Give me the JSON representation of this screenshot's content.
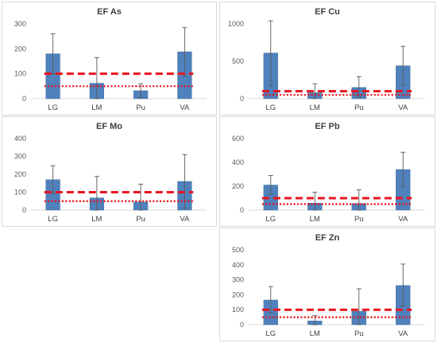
{
  "chart_data": [
    {
      "type": "bar",
      "title": "EF As",
      "categories": [
        "LG",
        "LM",
        "Pu",
        "VA"
      ],
      "values": [
        180,
        62,
        32,
        188
      ],
      "error_high": [
        260,
        165,
        60,
        285
      ],
      "error_low": [
        100,
        0,
        5,
        90
      ],
      "ylim": [
        0,
        300
      ],
      "yticks": [
        "0",
        "100",
        "200",
        "300"
      ],
      "reference_lines": [
        {
          "style": "dashed",
          "value": 100
        },
        {
          "style": "dotted",
          "value": 50
        }
      ]
    },
    {
      "type": "bar",
      "title": "EF Cu",
      "categories": [
        "LG",
        "LM",
        "Pu",
        "VA"
      ],
      "values": [
        610,
        80,
        150,
        440
      ],
      "error_high": [
        1040,
        200,
        295,
        700
      ],
      "error_low": [
        170,
        0,
        20,
        180
      ],
      "ylim": [
        0,
        1000
      ],
      "yticks": [
        "0",
        "500",
        "1000"
      ],
      "reference_lines": [
        {
          "style": "dashed",
          "value": 100
        },
        {
          "style": "dotted",
          "value": 50
        }
      ]
    },
    {
      "type": "bar",
      "title": "EF Mo",
      "categories": [
        "LG",
        "LM",
        "Pu",
        "VA"
      ],
      "values": [
        170,
        68,
        45,
        160
      ],
      "error_high": [
        248,
        188,
        145,
        310
      ],
      "error_low": [
        90,
        0,
        0,
        10
      ],
      "ylim": [
        0,
        400
      ],
      "yticks": [
        "0",
        "100",
        "200",
        "300",
        "400"
      ],
      "reference_lines": [
        {
          "style": "dashed",
          "value": 100
        },
        {
          "style": "dotted",
          "value": 50
        }
      ]
    },
    {
      "type": "bar",
      "title": "EF Pb",
      "categories": [
        "LG",
        "LM",
        "Pu",
        "VA"
      ],
      "values": [
        210,
        58,
        55,
        340
      ],
      "error_high": [
        290,
        150,
        170,
        485
      ],
      "error_low": [
        130,
        0,
        0,
        195
      ],
      "ylim": [
        0,
        600
      ],
      "yticks": [
        "0",
        "200",
        "400",
        "600"
      ],
      "reference_lines": [
        {
          "style": "dashed",
          "value": 100
        },
        {
          "style": "dotted",
          "value": 50
        }
      ]
    },
    {
      "type": "bar",
      "title": "EF Zn",
      "categories": [
        "LG",
        "LM",
        "Pu",
        "VA"
      ],
      "values": [
        165,
        25,
        90,
        262
      ],
      "error_high": [
        255,
        60,
        240,
        405
      ],
      "error_low": [
        80,
        0,
        0,
        125
      ],
      "ylim": [
        0,
        500
      ],
      "yticks": [
        "0",
        "100",
        "200",
        "300",
        "400",
        "500"
      ],
      "reference_lines": [
        {
          "style": "dashed",
          "value": 100
        },
        {
          "style": "dotted",
          "value": 50
        }
      ]
    }
  ],
  "colors": {
    "bar": "#4f81bd",
    "bar_edge": "#41719c",
    "reference_line": "#e8141e",
    "error_bar": "#595959"
  }
}
